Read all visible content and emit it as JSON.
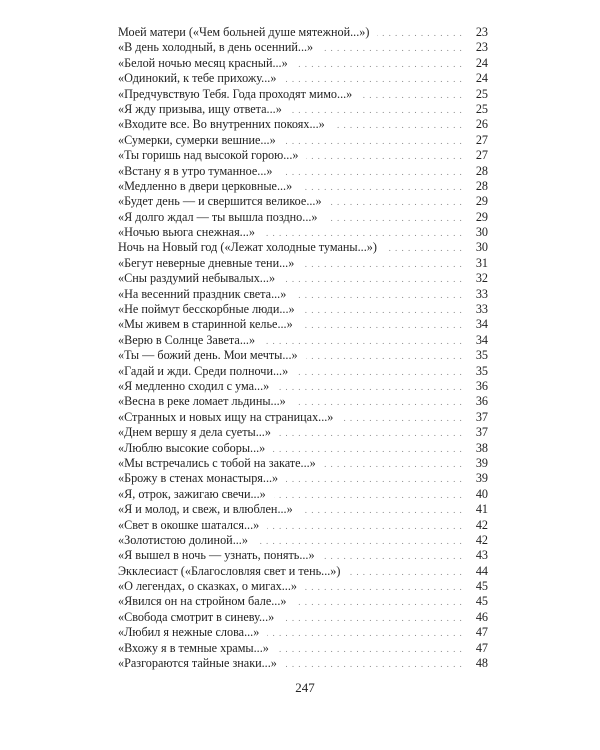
{
  "entries": [
    {
      "title": "Моей матери («Чем больней душе мятежной...»)",
      "page": "23"
    },
    {
      "title": "«В день холодный, в день осенний...»",
      "page": "23"
    },
    {
      "title": "«Белой ночью месяц красный...»",
      "page": "24"
    },
    {
      "title": "«Одинокий, к тебе прихожу...»",
      "page": "24"
    },
    {
      "title": "«Предчувствую Тебя. Года проходят мимо...»",
      "page": "25"
    },
    {
      "title": "«Я жду призыва, ищу ответа...»",
      "page": "25"
    },
    {
      "title": "«Входите все. Во внутренних покоях...»",
      "page": "26"
    },
    {
      "title": "«Сумерки, сумерки вешние...»",
      "page": "27"
    },
    {
      "title": "«Ты горишь над высокой горою...»",
      "page": "27"
    },
    {
      "title": "«Встану я в утро туманное...»",
      "page": "28"
    },
    {
      "title": "«Медленно в двери церковные...»",
      "page": "28"
    },
    {
      "title": "«Будет день — и свершится великое...»",
      "page": "29"
    },
    {
      "title": "«Я долго ждал — ты вышла поздно...»",
      "page": "29"
    },
    {
      "title": "«Ночью вьюга снежная...»",
      "page": "30"
    },
    {
      "title": "Ночь на Новый год («Лежат холодные туманы...»)",
      "page": "30"
    },
    {
      "title": "«Бегут неверные дневные тени...»",
      "page": "31"
    },
    {
      "title": "«Сны раздумий небывалых...»",
      "page": "32"
    },
    {
      "title": "«На весенний праздник света...»",
      "page": "33"
    },
    {
      "title": "«Не поймут бесскорбные люди...»",
      "page": "33"
    },
    {
      "title": "«Мы живем в старинной келье...»",
      "page": "34"
    },
    {
      "title": "«Верю в Солнце Завета...»",
      "page": "34"
    },
    {
      "title": "«Ты — божий день. Мои мечты...»",
      "page": "35"
    },
    {
      "title": "«Гадай и жди. Среди полночи...»",
      "page": "35"
    },
    {
      "title": "«Я медленно сходил с ума...»",
      "page": "36"
    },
    {
      "title": "«Весна в реке ломает льдины...»",
      "page": "36"
    },
    {
      "title": "«Странных и новых ищу на страницах...»",
      "page": "37"
    },
    {
      "title": "«Днем вершу я дела суеты...»",
      "page": "37"
    },
    {
      "title": "«Люблю высокие соборы...»",
      "page": "38"
    },
    {
      "title": "«Мы встречались с тобой на закате...»",
      "page": "39"
    },
    {
      "title": "«Брожу в стенах монастыря...»",
      "page": "39"
    },
    {
      "title": "«Я, отрок, зажигаю свечи...»",
      "page": "40"
    },
    {
      "title": "«Я и молод, и свеж, и влюблен...»",
      "page": "41"
    },
    {
      "title": "«Свет в окошке шатался...»",
      "page": "42"
    },
    {
      "title": "«Золотистою долиной...»",
      "page": "42"
    },
    {
      "title": "«Я вышел в ночь — узнать, понять...»",
      "page": "43"
    },
    {
      "title": "Экклесиаст («Благословляя свет и тень...»)",
      "page": "44"
    },
    {
      "title": "«О легендах, о сказках, о мигах...»",
      "page": "45"
    },
    {
      "title": "«Явился он на стройном бале...»",
      "page": "45"
    },
    {
      "title": "«Свобода смотрит в синеву...»",
      "page": "46"
    },
    {
      "title": "«Любил я нежные слова...»",
      "page": "47"
    },
    {
      "title": "«Вхожу я в темные храмы...»",
      "page": "47"
    },
    {
      "title": "«Разгораются тайные знаки...»",
      "page": "48"
    }
  ],
  "page_number": "247"
}
